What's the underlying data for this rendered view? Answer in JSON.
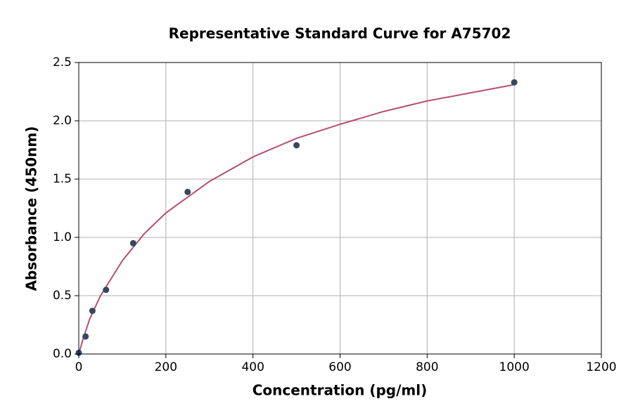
{
  "chart_data": {
    "type": "scatter",
    "title": "Representative Standard Curve for A75702",
    "x_label": "Concentration (pg/ml)",
    "y_label": "Absorbance (450nm)",
    "series": [
      {
        "type": "scatter",
        "color": "#34495e",
        "x": [
          0,
          15.6,
          31.25,
          62.5,
          125,
          250,
          500,
          1000
        ],
        "values": [
          0.01,
          0.15,
          0.37,
          0.55,
          0.95,
          1.39,
          1.79,
          2.33
        ]
      },
      {
        "type": "line",
        "color": "#b5506e",
        "x": [
          0,
          10,
          25,
          50,
          100,
          150,
          200,
          300,
          400,
          500,
          600,
          700,
          800,
          900,
          1000
        ],
        "values": [
          0.0,
          0.13,
          0.3,
          0.5,
          0.8,
          1.03,
          1.21,
          1.48,
          1.69,
          1.85,
          1.97,
          2.08,
          2.17,
          2.24,
          2.31
        ]
      }
    ],
    "xlim": [
      0,
      1200
    ],
    "xticks": [
      0,
      200,
      400,
      600,
      800,
      1000,
      1200
    ],
    "ylim": [
      0,
      2.5
    ],
    "yticks": [
      {
        "value": 0,
        "label": "0.0"
      },
      0.5,
      {
        "value": 1,
        "label": "1.0"
      },
      1.5,
      {
        "value": 2,
        "label": "2.0"
      },
      2.5
    ],
    "grid": true
  }
}
